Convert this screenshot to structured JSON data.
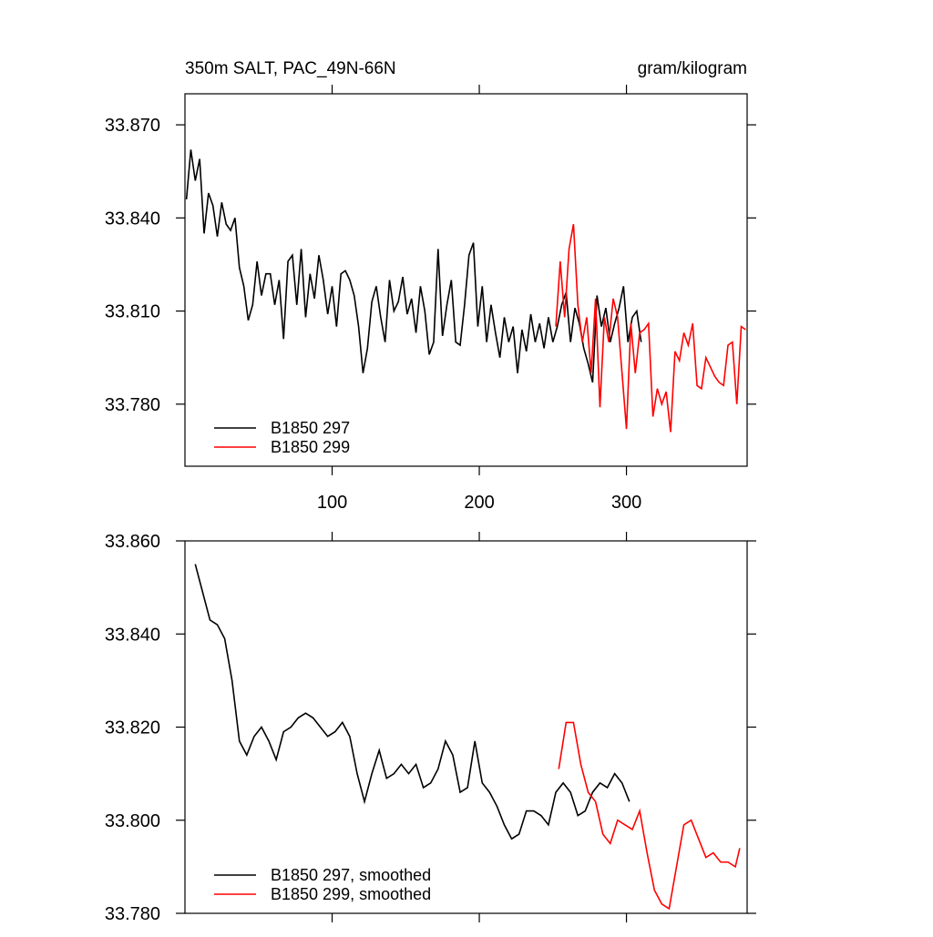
{
  "chart_data": [
    {
      "type": "line",
      "title": "350m SALT, PAC_49N-66N",
      "subtitle": "gram/kilogram",
      "xlim": [
        0,
        382
      ],
      "xticks": [
        100,
        200,
        300
      ],
      "ylim": [
        33.76,
        33.88
      ],
      "yticks": [
        {
          "value": 33.78,
          "label": "33.780"
        },
        {
          "value": 33.81,
          "label": "33.810"
        },
        {
          "value": 33.84,
          "label": "33.840"
        },
        {
          "value": 33.87,
          "label": "33.870"
        }
      ],
      "legend": "lower left",
      "series": [
        {
          "name": "B1850 297",
          "color": "#000000",
          "x": [
            1,
            4,
            7,
            10,
            13,
            16,
            19,
            22,
            25,
            28,
            31,
            34,
            37,
            40,
            43,
            46,
            49,
            52,
            55,
            58,
            61,
            64,
            67,
            70,
            73,
            76,
            79,
            82,
            85,
            88,
            91,
            94,
            97,
            100,
            103,
            106,
            109,
            112,
            115,
            118,
            121,
            124,
            127,
            130,
            133,
            136,
            139,
            142,
            145,
            148,
            151,
            154,
            157,
            160,
            163,
            166,
            169,
            172,
            175,
            178,
            181,
            184,
            187,
            190,
            193,
            196,
            199,
            202,
            205,
            208,
            211,
            214,
            217,
            220,
            223,
            226,
            229,
            232,
            235,
            238,
            241,
            244,
            247,
            250,
            253,
            256,
            259,
            262,
            265,
            268,
            271,
            274,
            277,
            280,
            283,
            286,
            289,
            292,
            295,
            298,
            301,
            304,
            307,
            310
          ],
          "values": [
            33.846,
            33.862,
            33.852,
            33.859,
            33.835,
            33.848,
            33.844,
            33.834,
            33.845,
            33.838,
            33.836,
            33.84,
            33.824,
            33.818,
            33.807,
            33.812,
            33.826,
            33.815,
            33.822,
            33.822,
            33.812,
            33.82,
            33.801,
            33.826,
            33.828,
            33.812,
            33.83,
            33.808,
            33.822,
            33.814,
            33.828,
            33.82,
            33.809,
            33.818,
            33.805,
            33.822,
            33.823,
            33.82,
            33.815,
            33.805,
            33.79,
            33.798,
            33.813,
            33.818,
            33.808,
            33.8,
            33.82,
            33.81,
            33.813,
            33.821,
            33.809,
            33.814,
            33.803,
            33.818,
            33.81,
            33.796,
            33.8,
            33.83,
            33.802,
            33.812,
            33.82,
            33.8,
            33.799,
            33.812,
            33.828,
            33.832,
            33.805,
            33.818,
            33.8,
            33.812,
            33.803,
            33.795,
            33.808,
            33.8,
            33.805,
            33.79,
            33.804,
            33.797,
            33.809,
            33.8,
            33.806,
            33.798,
            33.808,
            33.8,
            33.805,
            33.812,
            33.816,
            33.8,
            33.811,
            33.806,
            33.798,
            33.793,
            33.787,
            33.815,
            33.805,
            33.811,
            33.8,
            33.806,
            33.811,
            33.818,
            33.8,
            33.808,
            33.81,
            33.8
          ]
        },
        {
          "name": "B1850 299",
          "color": "#ff0000",
          "x": [
            252,
            255,
            258,
            261,
            264,
            267,
            270,
            273,
            276,
            279,
            282,
            285,
            288,
            291,
            294,
            297,
            300,
            303,
            306,
            309,
            312,
            315,
            318,
            321,
            324,
            327,
            330,
            333,
            336,
            339,
            342,
            345,
            348,
            351,
            354,
            357,
            360,
            363,
            366,
            369,
            372,
            375,
            378,
            381
          ],
          "values": [
            33.805,
            33.826,
            33.808,
            33.83,
            33.838,
            33.812,
            33.8,
            33.808,
            33.79,
            33.814,
            33.779,
            33.808,
            33.8,
            33.814,
            33.808,
            33.79,
            33.772,
            33.806,
            33.79,
            33.803,
            33.804,
            33.806,
            33.776,
            33.785,
            33.78,
            33.784,
            33.771,
            33.797,
            33.794,
            33.803,
            33.799,
            33.806,
            33.786,
            33.785,
            33.795,
            33.792,
            33.789,
            33.787,
            33.786,
            33.799,
            33.8,
            33.78,
            33.805,
            33.804
          ]
        }
      ]
    },
    {
      "type": "line",
      "xlim": [
        0,
        382
      ],
      "xticks": [
        100,
        200,
        300
      ],
      "ylim": [
        33.78,
        33.86
      ],
      "yticks": [
        {
          "value": 33.78,
          "label": "33.780"
        },
        {
          "value": 33.8,
          "label": "33.800"
        },
        {
          "value": 33.82,
          "label": "33.820"
        },
        {
          "value": 33.84,
          "label": "33.840"
        },
        {
          "value": 33.86,
          "label": "33.860"
        }
      ],
      "legend": "lower left",
      "series": [
        {
          "name": "B1850 297, smoothed",
          "color": "#000000",
          "x": [
            7,
            12,
            17,
            22,
            27,
            32,
            37,
            42,
            47,
            52,
            57,
            62,
            67,
            72,
            77,
            82,
            87,
            92,
            97,
            102,
            107,
            112,
            117,
            122,
            127,
            132,
            137,
            142,
            147,
            152,
            157,
            162,
            167,
            172,
            177,
            182,
            187,
            192,
            197,
            202,
            207,
            212,
            217,
            222,
            227,
            232,
            237,
            242,
            247,
            252,
            257,
            262,
            267,
            272,
            277,
            282,
            287,
            292,
            297,
            302
          ],
          "values": [
            33.855,
            33.849,
            33.843,
            33.842,
            33.839,
            33.83,
            33.817,
            33.814,
            33.818,
            33.82,
            33.817,
            33.813,
            33.819,
            33.82,
            33.822,
            33.823,
            33.822,
            33.82,
            33.818,
            33.819,
            33.821,
            33.818,
            33.81,
            33.804,
            33.81,
            33.815,
            33.809,
            33.81,
            33.812,
            33.81,
            33.812,
            33.807,
            33.808,
            33.811,
            33.817,
            33.814,
            33.806,
            33.807,
            33.817,
            33.808,
            33.806,
            33.803,
            33.799,
            33.796,
            33.797,
            33.802,
            33.802,
            33.801,
            33.799,
            33.806,
            33.808,
            33.806,
            33.801,
            33.802,
            33.806,
            33.808,
            33.807,
            33.81,
            33.808,
            33.804
          ]
        },
        {
          "name": "B1850 299, smoothed",
          "color": "#ff0000",
          "x": [
            254,
            259,
            264,
            269,
            274,
            279,
            284,
            289,
            294,
            299,
            304,
            309,
            314,
            319,
            324,
            329,
            334,
            339,
            344,
            349,
            354,
            359,
            364,
            369,
            374,
            377
          ],
          "values": [
            33.811,
            33.821,
            33.821,
            33.812,
            33.806,
            33.804,
            33.797,
            33.795,
            33.8,
            33.799,
            33.798,
            33.802,
            33.793,
            33.785,
            33.782,
            33.781,
            33.79,
            33.799,
            33.8,
            33.796,
            33.792,
            33.793,
            33.791,
            33.791,
            33.79,
            33.794
          ]
        }
      ]
    }
  ]
}
